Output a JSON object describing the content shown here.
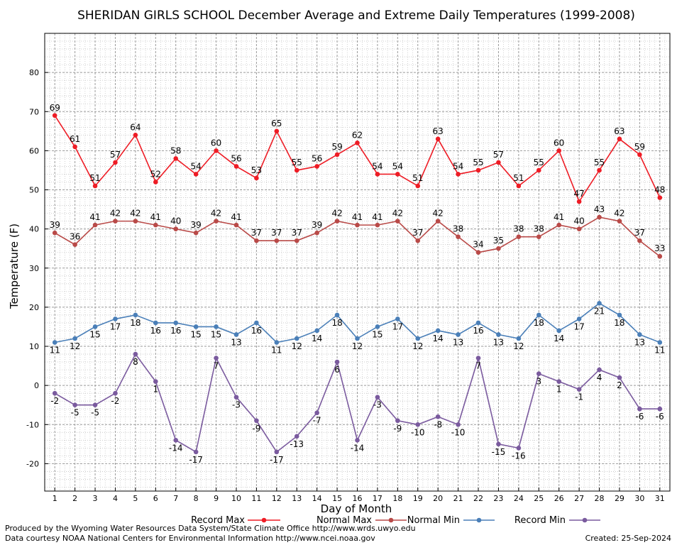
{
  "chart_data": {
    "type": "line",
    "title": "SHERIDAN GIRLS SCHOOL December Average and Extreme Daily Temperatures (1999-2008)",
    "xlabel": "Day of Month",
    "ylabel": "Temperature (F)",
    "x": [
      1,
      2,
      3,
      4,
      5,
      6,
      7,
      8,
      9,
      10,
      11,
      12,
      13,
      14,
      15,
      16,
      17,
      18,
      19,
      20,
      21,
      22,
      23,
      24,
      25,
      26,
      27,
      28,
      29,
      30,
      31
    ],
    "xlim": [
      0.5,
      31.5
    ],
    "ylim": [
      -27,
      90
    ],
    "yticks": [
      -20,
      -10,
      0,
      10,
      20,
      30,
      40,
      50,
      60,
      70,
      80
    ],
    "grid": true,
    "series": [
      {
        "name": "Record Max",
        "color": "#ee1c25",
        "values": [
          69,
          61,
          51,
          57,
          64,
          52,
          58,
          54,
          60,
          56,
          53,
          65,
          55,
          56,
          59,
          62,
          54,
          54,
          51,
          63,
          54,
          55,
          57,
          51,
          55,
          60,
          47,
          55,
          63,
          59,
          48
        ],
        "label_pos": "above"
      },
      {
        "name": "Normal Max",
        "color": "#b94a48",
        "values": [
          39,
          36,
          41,
          42,
          42,
          41,
          40,
          39,
          42,
          41,
          37,
          37,
          37,
          39,
          42,
          41,
          41,
          42,
          37,
          42,
          38,
          34,
          35,
          38,
          38,
          41,
          40,
          43,
          42,
          37,
          33
        ],
        "label_pos": "above"
      },
      {
        "name": "Normal Min",
        "color": "#4a7fb8",
        "values": [
          11,
          12,
          15,
          17,
          18,
          16,
          16,
          15,
          15,
          13,
          16,
          11,
          12,
          14,
          18,
          12,
          15,
          17,
          12,
          14,
          13,
          16,
          13,
          12,
          18,
          14,
          17,
          21,
          18,
          13,
          11
        ],
        "label_pos": "below"
      },
      {
        "name": "Record Min",
        "color": "#7a5a9e",
        "values": [
          -2,
          -5,
          -5,
          -2,
          8,
          1,
          -14,
          -17,
          7,
          -3,
          -9,
          -17,
          -13,
          -7,
          6,
          -14,
          -3,
          -9,
          -10,
          -8,
          -10,
          7,
          -15,
          -16,
          3,
          1,
          -1,
          4,
          2,
          -6,
          -6
        ],
        "label_pos": "below"
      }
    ]
  },
  "footer": {
    "line1": "Produced by the Wyoming Water Resources Data System/State Climate Office http://www.wrds.uwyo.edu",
    "line2": "Data courtesy NOAA National Centers for Environmental Information http://www.ncei.noaa.gov",
    "created": "Created:  25-Sep-2024"
  }
}
